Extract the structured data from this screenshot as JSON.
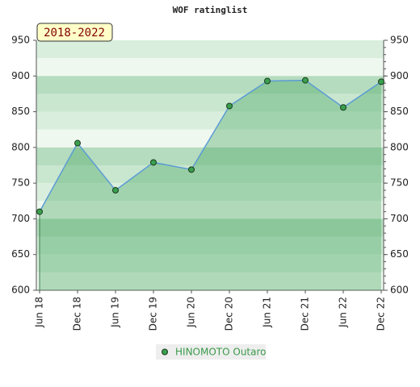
{
  "chart_data": {
    "type": "line",
    "title": "WOF ratinglist",
    "label": "2018-2022",
    "categories": [
      "Jun 18",
      "Dec 18",
      "Jun 19",
      "Dec 19",
      "Jun 20",
      "Dec 20",
      "Jun 21",
      "Dec 21",
      "Jun 22",
      "Dec 22"
    ],
    "series": [
      {
        "name": "HINOMOTO Outaro",
        "color": "#5b9bd5",
        "values": [
          710,
          806,
          740,
          779,
          769,
          858,
          893,
          894,
          856,
          892
        ]
      }
    ],
    "ylim": [
      600,
      950
    ],
    "yticks": [
      600,
      650,
      700,
      750,
      800,
      850,
      900,
      950
    ],
    "grid": true
  }
}
